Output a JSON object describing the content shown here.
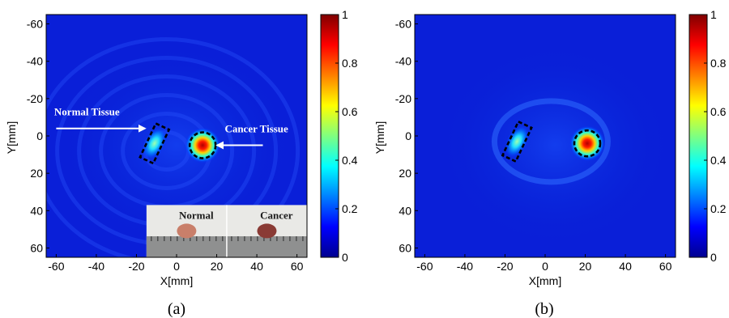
{
  "colors": {
    "colormap": "jet",
    "annotation": "#ffffff",
    "roi_outline": "#000000"
  },
  "chart_data": [
    {
      "type": "heatmap",
      "caption": "(a)",
      "xlabel": "X[mm]",
      "ylabel": "Y[mm]",
      "xlim": [
        -65,
        65
      ],
      "ylim": [
        -65,
        65
      ],
      "y_reversed": true,
      "x_ticks": [
        -60,
        -40,
        -20,
        0,
        20,
        40,
        60
      ],
      "y_ticks": [
        -60,
        -40,
        -20,
        0,
        20,
        40,
        60
      ],
      "colorbar": {
        "range": [
          0,
          1
        ],
        "ticks": [
          0,
          0.2,
          0.4,
          0.6,
          0.8,
          1
        ],
        "tick_labels": [
          "0",
          "0.2",
          "0.4",
          "0.6",
          "0.8",
          "1"
        ]
      },
      "background_level": 0.1,
      "hotspots": [
        {
          "name": "normal",
          "x": -11,
          "y": 4,
          "peak": 0.45
        },
        {
          "name": "cancer",
          "x": 13,
          "y": 5,
          "peak": 1.0
        }
      ],
      "annotations": [
        {
          "text": "Normal Tissue",
          "arrow_to": "normal"
        },
        {
          "text": "Cancer Tissue",
          "arrow_to": "cancer"
        }
      ],
      "inset_photo": {
        "labels": [
          "Normal",
          "Cancer"
        ]
      }
    },
    {
      "type": "heatmap",
      "caption": "(b)",
      "xlabel": "X[mm]",
      "ylabel": "Y[mm]",
      "xlim": [
        -65,
        65
      ],
      "ylim": [
        -65,
        65
      ],
      "y_reversed": true,
      "x_ticks": [
        -60,
        -40,
        -20,
        0,
        20,
        40,
        60
      ],
      "y_ticks": [
        -60,
        -40,
        -20,
        0,
        20,
        40,
        60
      ],
      "colorbar": {
        "range": [
          0,
          1
        ],
        "ticks": [
          0,
          0.2,
          0.4,
          0.6,
          0.8,
          1
        ],
        "tick_labels": [
          "0",
          "0.2",
          "0.4",
          "0.6",
          "0.8",
          "1"
        ]
      },
      "background_level": 0.12,
      "hotspots": [
        {
          "name": "normal",
          "x": -14,
          "y": 3,
          "peak": 0.45
        },
        {
          "name": "cancer",
          "x": 21,
          "y": 4,
          "peak": 1.0
        }
      ]
    }
  ]
}
